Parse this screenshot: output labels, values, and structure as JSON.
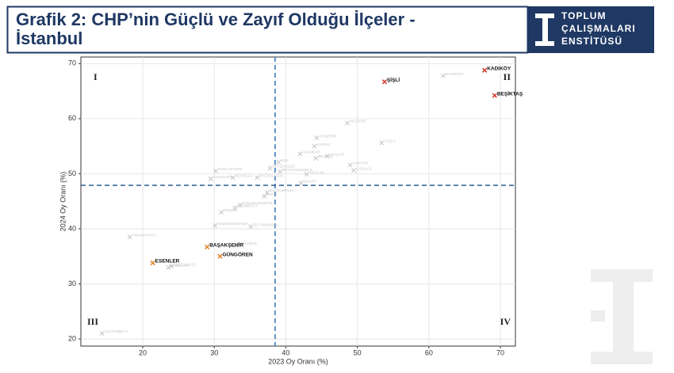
{
  "title": "Grafik 2: CHP’nin Güçlü ve Zayıf Olduğu İlçeler - İstanbul",
  "logo": [
    "TOPLUM",
    "ÇALIŞMALARI",
    "ENSTİTÜSÜ"
  ],
  "chart_data": {
    "type": "scatter",
    "xlabel": "2023 Oy Oranı (%)",
    "ylabel": "2024 Oy Oranı (%)",
    "xlim": [
      11.35,
      72.1
    ],
    "ylim": [
      18.7,
      71.2
    ],
    "xticks": [
      20,
      30,
      40,
      50,
      60,
      70
    ],
    "yticks": [
      20,
      30,
      40,
      50,
      60,
      70
    ],
    "grid": true,
    "reference_lines": {
      "x": 38.5,
      "y": 47.9,
      "color": "#3a7dc0"
    },
    "quadrant_labels": [
      "I",
      "II",
      "III",
      "IV"
    ],
    "series": [
      {
        "color": "#d43a2a",
        "label_color": "#111111",
        "bold": true,
        "labels": [
          "KADIKÖY",
          "ŞİŞLİ",
          "BEŞİKTAŞ"
        ],
        "x": [
          67.8,
          53.8,
          69.2
        ],
        "values": [
          68.8,
          66.7,
          64.2
        ]
      },
      {
        "color": "#e0832a",
        "label_color": "#111111",
        "bold": true,
        "labels": [
          "BAŞAKŞEHİR",
          "GÜNGÖREN",
          "ESENLER"
        ],
        "x": [
          29.0,
          30.8,
          21.4
        ],
        "values": [
          36.7,
          35.0,
          33.8
        ]
      },
      {
        "color": "#bdbdbd",
        "label_color": "#c4c4c4",
        "bold": false,
        "labels": [
          "BAKIRKÖY",
          "MALTEPE",
          "ATAŞEHİR",
          "KARTAL",
          "ÜSKÜDAR",
          "BEYKOZ",
          "ADALAR",
          "SARIYER",
          "ÇATALCA",
          "TUZLA",
          "ŞİLE",
          "BEYLİKDÜZÜ",
          "BÜYÜKÇEKMECE",
          "SANCAKTEPE",
          "ESENYURT",
          "BEYOĞLU",
          "EYÜPSULTAN",
          "SİLİVRİ",
          "BAYRAMPAŞA",
          "FATİH",
          "KÜÇÜKÇEKMECE",
          "ÇEKMEKÖY",
          "PENDİK",
          "GAZİOSMANPAŞA",
          "ZEYTİNBURNU",
          "ÜMRANİYE",
          "BAĞCILAR",
          "ARNAVUTKÖY",
          "SULTANBEYLİ",
          "AVCILAR",
          "SULTANGAZİ"
        ],
        "x": [
          62.0,
          48.6,
          44.3,
          44.0,
          42.0,
          44.2,
          45.8,
          49.0,
          49.5,
          53.4,
          39.0,
          37.8,
          39.2,
          30.2,
          29.5,
          32.6,
          36.0,
          42.1,
          37.4,
          37.0,
          33.6,
          32.9,
          31.0,
          30.1,
          35.1,
          33.0,
          23.6,
          18.2,
          14.3,
          42.9,
          24.0
        ],
        "values": [
          67.8,
          59.2,
          56.5,
          55.0,
          53.6,
          52.8,
          53.2,
          51.6,
          50.6,
          55.6,
          52.1,
          51.0,
          50.4,
          50.5,
          49.1,
          49.3,
          49.3,
          48.3,
          46.6,
          45.9,
          44.3,
          43.8,
          43.0,
          40.6,
          40.4,
          37.0,
          33.0,
          38.5,
          21.0,
          49.9,
          33.2
        ]
      }
    ]
  }
}
